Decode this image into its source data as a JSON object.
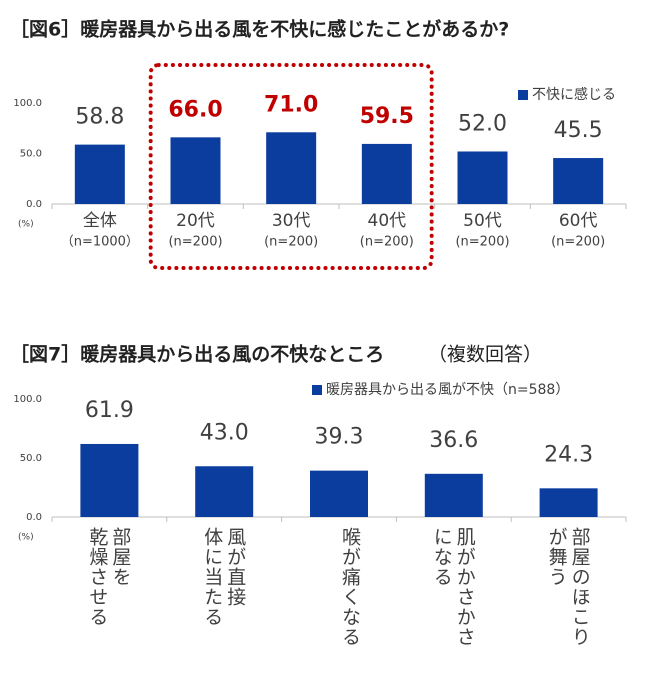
{
  "chart_data": [
    {
      "type": "bar",
      "title": "［図6］暖房器具から出る風を不快に感じたことがあるか?",
      "categories": [
        "全体",
        "20代",
        "30代",
        "40代",
        "50代",
        "60代"
      ],
      "sample_sizes": [
        "（n=1000）",
        "(n=200)",
        "(n=200)",
        "(n=200)",
        "(n=200)",
        "(n=200)"
      ],
      "series": [
        {
          "name": "不快に感じる",
          "color": "#0b3d9e",
          "values": [
            58.8,
            66.0,
            71.0,
            59.5,
            52.0,
            45.5
          ],
          "value_labels": [
            "58.8",
            "66.0",
            "71.0",
            "59.5",
            "52.0",
            "45.5"
          ]
        }
      ],
      "highlight": [
        1,
        2,
        3
      ],
      "highlight_color": "#c00000",
      "ylim": [
        0,
        100
      ],
      "yticks": [
        {
          "value": 0,
          "label": "0.0"
        },
        {
          "value": 50,
          "label": "50.0"
        },
        {
          "value": 100,
          "label": "100.0"
        }
      ],
      "y_unit": "(%)",
      "grid": false,
      "legend": "top-right"
    },
    {
      "type": "bar",
      "title": "［図7］暖房器具から出る風の不快なところ",
      "subtitle": "（複数回答）",
      "categories": [
        [
          "部屋を",
          "乾燥させる"
        ],
        [
          "風が直接",
          "体に当たる"
        ],
        [
          "喉が痛くなる"
        ],
        [
          "肌がかさかさ",
          "になる"
        ],
        [
          "部屋のほこり",
          "が舞う"
        ]
      ],
      "series": [
        {
          "name": "暖房器具から出る風が不快（n=588）",
          "color": "#0b3d9e",
          "values": [
            61.9,
            43.0,
            39.3,
            36.6,
            24.3
          ],
          "value_labels": [
            "61.9",
            "43.0",
            "39.3",
            "36.6",
            "24.3"
          ]
        }
      ],
      "ylim": [
        0,
        100
      ],
      "yticks": [
        {
          "value": 0,
          "label": "0.0"
        },
        {
          "value": 50,
          "label": "50.0"
        },
        {
          "value": 100,
          "label": "100.0"
        }
      ],
      "y_unit": "(%)",
      "grid": false,
      "legend": "top-right"
    }
  ]
}
